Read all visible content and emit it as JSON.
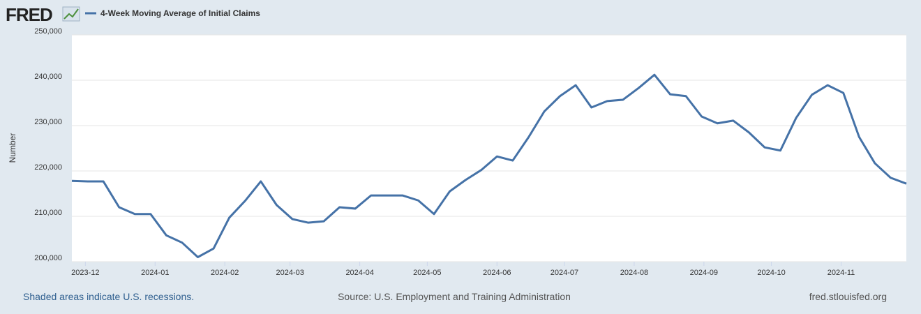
{
  "logo": "FRED",
  "footer": {
    "left": "Shaded areas indicate U.S. recessions.",
    "center": "Source: U.S. Employment and Training Administration",
    "right": "fred.stlouisfed.org"
  },
  "chart_data": {
    "type": "line",
    "ylabel": "Number",
    "x": [
      "2023-11-25",
      "2023-12-02",
      "2023-12-09",
      "2023-12-16",
      "2023-12-23",
      "2023-12-30",
      "2024-01-06",
      "2024-01-13",
      "2024-01-20",
      "2024-01-27",
      "2024-02-03",
      "2024-02-10",
      "2024-02-17",
      "2024-02-24",
      "2024-03-02",
      "2024-03-09",
      "2024-03-16",
      "2024-03-23",
      "2024-03-30",
      "2024-04-06",
      "2024-04-13",
      "2024-04-20",
      "2024-04-27",
      "2024-05-04",
      "2024-05-11",
      "2024-05-18",
      "2024-05-25",
      "2024-06-01",
      "2024-06-08",
      "2024-06-15",
      "2024-06-22",
      "2024-06-29",
      "2024-07-06",
      "2024-07-13",
      "2024-07-20",
      "2024-07-27",
      "2024-08-03",
      "2024-08-10",
      "2024-08-17",
      "2024-08-24",
      "2024-08-31",
      "2024-09-07",
      "2024-09-14",
      "2024-09-21",
      "2024-09-28",
      "2024-10-05",
      "2024-10-12",
      "2024-10-19",
      "2024-10-26",
      "2024-11-02",
      "2024-11-09",
      "2024-11-16",
      "2024-11-23",
      "2024-11-30"
    ],
    "series": [
      {
        "name": "4-Week Moving Average of Initial Claims",
        "color": "#4572a7",
        "values": [
          217800,
          217700,
          217700,
          212000,
          210500,
          210500,
          205800,
          204200,
          201000,
          202900,
          209700,
          213400,
          217700,
          212500,
          209400,
          208600,
          208900,
          212000,
          211700,
          214600,
          214600,
          214600,
          213500,
          210500,
          215500,
          218000,
          220200,
          223200,
          222300,
          227400,
          233100,
          236500,
          238900,
          234000,
          235400,
          235700,
          238300,
          241200,
          236900,
          236500,
          232000,
          230500,
          231100,
          228500,
          225200,
          224500,
          231700,
          236800,
          238900,
          237200,
          227500,
          221700,
          218500,
          217200
        ]
      }
    ],
    "xlim": [
      "2023-11-25",
      "2024-11-30"
    ],
    "xticks": [
      {
        "value": "2023-12-01",
        "label": "2023-12"
      },
      {
        "value": "2024-01-01",
        "label": "2024-01"
      },
      {
        "value": "2024-02-01",
        "label": "2024-02"
      },
      {
        "value": "2024-03-01",
        "label": "2024-03"
      },
      {
        "value": "2024-04-01",
        "label": "2024-04"
      },
      {
        "value": "2024-05-01",
        "label": "2024-05"
      },
      {
        "value": "2024-06-01",
        "label": "2024-06"
      },
      {
        "value": "2024-07-01",
        "label": "2024-07"
      },
      {
        "value": "2024-08-01",
        "label": "2024-08"
      },
      {
        "value": "2024-09-01",
        "label": "2024-09"
      },
      {
        "value": "2024-10-01",
        "label": "2024-10"
      },
      {
        "value": "2024-11-01",
        "label": "2024-11"
      }
    ],
    "ylim": [
      200000,
      250000
    ],
    "yticks": [
      {
        "value": 200000,
        "label": "200,000"
      },
      {
        "value": 210000,
        "label": "210,000"
      },
      {
        "value": 220000,
        "label": "220,000"
      },
      {
        "value": 230000,
        "label": "230,000"
      },
      {
        "value": 240000,
        "label": "240,000"
      },
      {
        "value": 250000,
        "label": "250,000"
      }
    ],
    "grid": true
  }
}
